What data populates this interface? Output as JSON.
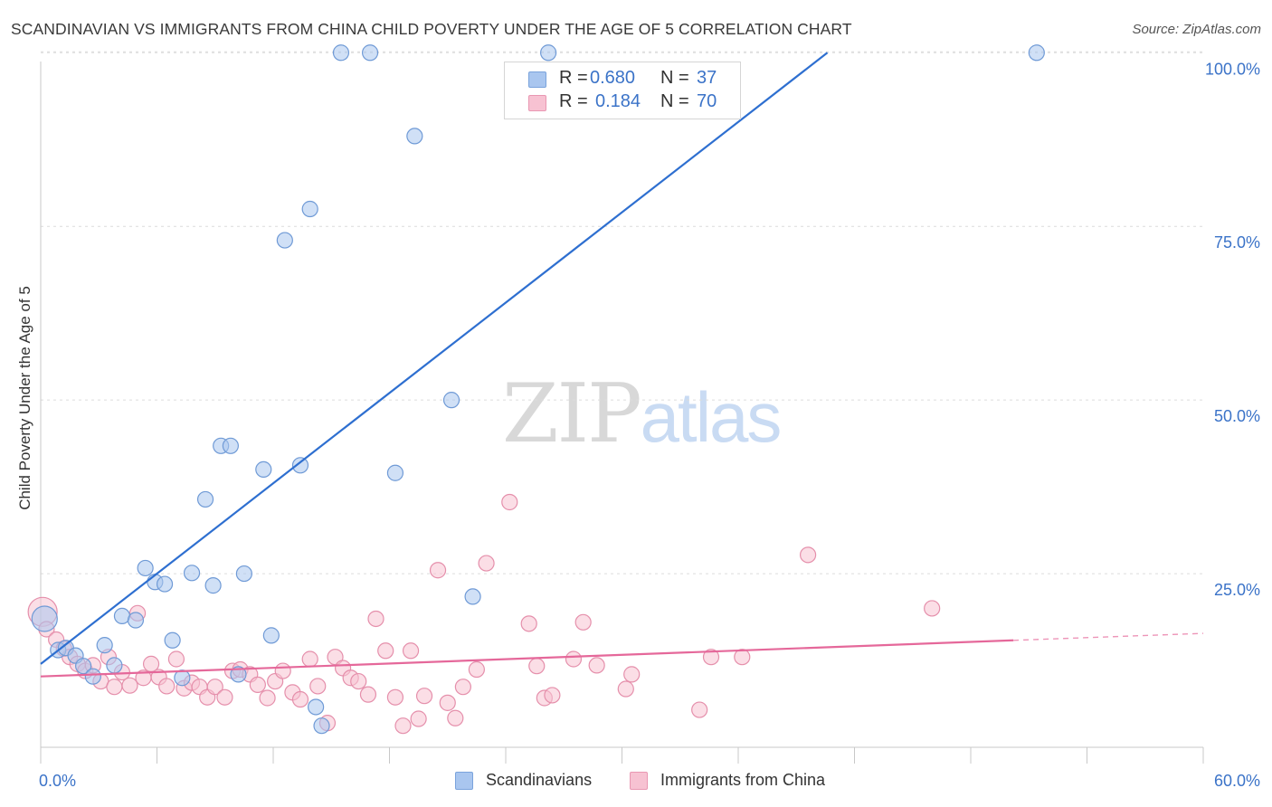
{
  "header": {
    "title": "SCANDINAVIAN VS IMMIGRANTS FROM CHINA CHILD POVERTY UNDER THE AGE OF 5 CORRELATION CHART",
    "source": "Source: ZipAtlas.com"
  },
  "watermark": {
    "part1": "ZIP",
    "part2": "atlas"
  },
  "legend": {
    "rows": [
      {
        "r_label": "R =",
        "r_value": "0.680",
        "n_label": "N =",
        "n_value": "37",
        "color": "#a9c6ef",
        "border": "#7aa3dc"
      },
      {
        "r_label": "R =",
        "r_value": "0.184",
        "n_label": "N =",
        "n_value": "70",
        "color": "#f7c2d2",
        "border": "#e997b2"
      }
    ]
  },
  "bottom_legend": {
    "series1": "Scandinavians",
    "series2": "Immigrants from China"
  },
  "axis": {
    "x_min_label": "0.0%",
    "x_max_label": "60.0%",
    "y_tick_labels": [
      "100.0%",
      "75.0%",
      "50.0%",
      "25.0%"
    ],
    "y_title": "Child Poverty Under the Age of 5"
  },
  "colors": {
    "blue_fill": "#a9c6ef",
    "blue_stroke": "#6f9ad6",
    "blue_line": "#2e6fd0",
    "pink_fill": "#f7c2d2",
    "pink_stroke": "#e58fab",
    "pink_line": "#e5689a",
    "grid": "#dcdcdc",
    "tick_text": "#3b73c8"
  },
  "chart_data": {
    "type": "scatter",
    "title": "SCANDINAVIAN VS IMMIGRANTS FROM CHINA CHILD POVERTY UNDER THE AGE OF 5 CORRELATION CHART",
    "xlabel": "",
    "ylabel": "Child Poverty Under the Age of 5",
    "xlim": [
      0,
      60
    ],
    "ylim": [
      0,
      102
    ],
    "y_ticks": [
      25,
      50,
      75,
      100
    ],
    "grid": true,
    "legend_position": "top-center",
    "series": [
      {
        "name": "Scandinavians",
        "R": 0.68,
        "N": 37,
        "trend": {
          "x1": 0,
          "y1": 12,
          "x2": 40.6,
          "y2": 100
        },
        "points": [
          [
            0.2,
            18.5
          ],
          [
            0.9,
            14
          ],
          [
            1.3,
            14.3
          ],
          [
            1.8,
            13.2
          ],
          [
            2.2,
            11.7
          ],
          [
            2.7,
            10.2
          ],
          [
            3.3,
            14.7
          ],
          [
            3.8,
            11.8
          ],
          [
            4.2,
            18.9
          ],
          [
            4.9,
            18.3
          ],
          [
            5.4,
            25.8
          ],
          [
            5.9,
            23.8
          ],
          [
            6.4,
            23.5
          ],
          [
            6.8,
            15.4
          ],
          [
            7.3,
            10
          ],
          [
            7.8,
            25.1
          ],
          [
            8.5,
            35.7
          ],
          [
            8.9,
            23.3
          ],
          [
            9.3,
            43.4
          ],
          [
            9.8,
            43.4
          ],
          [
            10.2,
            10.5
          ],
          [
            10.5,
            25
          ],
          [
            11.5,
            40
          ],
          [
            11.9,
            16.1
          ],
          [
            12.6,
            73
          ],
          [
            13.4,
            40.6
          ],
          [
            13.9,
            77.5
          ],
          [
            14.2,
            5.8
          ],
          [
            14.5,
            3.1
          ],
          [
            15.5,
            100
          ],
          [
            17,
            100
          ],
          [
            18.3,
            39.5
          ],
          [
            19.3,
            88
          ],
          [
            21.2,
            50
          ],
          [
            22.3,
            21.7
          ],
          [
            26.2,
            100
          ],
          [
            51.4,
            100
          ]
        ]
      },
      {
        "name": "Immigrants from China",
        "R": 0.184,
        "N": 70,
        "trend": {
          "x1": 0,
          "y1": 10.2,
          "x2": 50.2,
          "y2": 15.4,
          "dash_to_x": 60,
          "dash_to_y": 16.4
        },
        "points": [
          [
            0.1,
            19.5
          ],
          [
            0.3,
            17
          ],
          [
            0.8,
            15.5
          ],
          [
            1.2,
            14.2
          ],
          [
            1.5,
            13
          ],
          [
            1.9,
            12
          ],
          [
            2.3,
            11
          ],
          [
            2.7,
            11.8
          ],
          [
            3.1,
            9.5
          ],
          [
            3.5,
            13
          ],
          [
            3.8,
            8.7
          ],
          [
            4.2,
            10.8
          ],
          [
            4.6,
            8.9
          ],
          [
            5.0,
            19.3
          ],
          [
            5.3,
            10
          ],
          [
            5.7,
            12
          ],
          [
            6.1,
            10.1
          ],
          [
            6.5,
            8.8
          ],
          [
            7.0,
            12.7
          ],
          [
            7.4,
            8.5
          ],
          [
            7.8,
            9.3
          ],
          [
            8.2,
            8.7
          ],
          [
            8.6,
            7.2
          ],
          [
            9.0,
            8.7
          ],
          [
            9.5,
            7.2
          ],
          [
            9.9,
            11
          ],
          [
            10.3,
            11.2
          ],
          [
            10.8,
            10.5
          ],
          [
            11.2,
            9
          ],
          [
            11.7,
            7.1
          ],
          [
            12.1,
            9.5
          ],
          [
            12.5,
            11
          ],
          [
            13.0,
            7.9
          ],
          [
            13.4,
            6.9
          ],
          [
            13.9,
            12.7
          ],
          [
            14.3,
            8.8
          ],
          [
            14.8,
            3.5
          ],
          [
            15.2,
            13
          ],
          [
            15.6,
            11.4
          ],
          [
            16.0,
            10
          ],
          [
            16.4,
            9.5
          ],
          [
            16.9,
            7.6
          ],
          [
            17.3,
            18.5
          ],
          [
            17.8,
            13.9
          ],
          [
            18.3,
            7.2
          ],
          [
            18.7,
            3.1
          ],
          [
            19.1,
            13.9
          ],
          [
            19.5,
            4.1
          ],
          [
            19.8,
            7.4
          ],
          [
            20.5,
            25.5
          ],
          [
            21.0,
            6.4
          ],
          [
            21.4,
            4.2
          ],
          [
            21.8,
            8.7
          ],
          [
            22.5,
            11.2
          ],
          [
            23.0,
            26.5
          ],
          [
            24.2,
            35.3
          ],
          [
            25.2,
            17.8
          ],
          [
            25.6,
            11.7
          ],
          [
            26.0,
            7.1
          ],
          [
            26.4,
            7.5
          ],
          [
            27.5,
            12.7
          ],
          [
            28.0,
            18
          ],
          [
            28.7,
            11.8
          ],
          [
            30.2,
            8.4
          ],
          [
            30.5,
            10.5
          ],
          [
            34.0,
            5.4
          ],
          [
            34.6,
            13
          ],
          [
            36.2,
            13
          ],
          [
            39.6,
            27.7
          ],
          [
            46.0,
            20
          ]
        ]
      }
    ]
  }
}
